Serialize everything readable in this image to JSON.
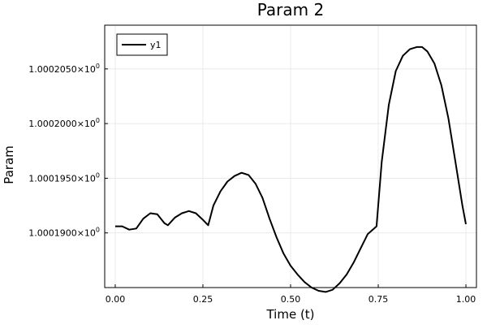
{
  "chart_data": {
    "type": "line",
    "title": "Param 2",
    "xlabel": "Time (t)",
    "ylabel": "Param",
    "xlim": [
      -0.03,
      1.03
    ],
    "ylim": [
      1.000185,
      1.000209
    ],
    "grid": true,
    "legend_position": "top-left",
    "x_ticks": [
      0.0,
      0.25,
      0.5,
      0.75,
      1.0
    ],
    "x_tick_labels": [
      "0.00",
      "0.25",
      "0.50",
      "0.75",
      "1.00"
    ],
    "y_ticks": [
      1.00019,
      1.000195,
      1.0002,
      1.000205
    ],
    "y_tick_labels": [
      {
        "mantissa": "1.0001900×10",
        "exp": "0"
      },
      {
        "mantissa": "1.0001950×10",
        "exp": "0"
      },
      {
        "mantissa": "1.0002000×10",
        "exp": "0"
      },
      {
        "mantissa": "1.0002050×10",
        "exp": "0"
      }
    ],
    "series": [
      {
        "name": "y1",
        "color": "#000000",
        "x": [
          0.0,
          0.02,
          0.04,
          0.06,
          0.08,
          0.1,
          0.12,
          0.14,
          0.15,
          0.17,
          0.19,
          0.21,
          0.23,
          0.25,
          0.265,
          0.28,
          0.3,
          0.32,
          0.34,
          0.36,
          0.37,
          0.38,
          0.4,
          0.42,
          0.44,
          0.46,
          0.48,
          0.5,
          0.52,
          0.54,
          0.56,
          0.58,
          0.6,
          0.62,
          0.64,
          0.66,
          0.68,
          0.7,
          0.72,
          0.745,
          0.76,
          0.78,
          0.8,
          0.82,
          0.84,
          0.86,
          0.875,
          0.89,
          0.91,
          0.93,
          0.95,
          0.97,
          0.99,
          1.0
        ],
        "y": [
          1.0001906,
          1.0001906,
          1.0001903,
          1.0001904,
          1.0001913,
          1.0001918,
          1.0001917,
          1.0001909,
          1.0001907,
          1.0001914,
          1.0001918,
          1.000192,
          1.0001918,
          1.0001912,
          1.0001907,
          1.0001925,
          1.0001938,
          1.0001947,
          1.0001952,
          1.0001955,
          1.0001954,
          1.0001953,
          1.0001945,
          1.0001932,
          1.0001913,
          1.0001896,
          1.0001881,
          1.000187,
          1.0001862,
          1.0001855,
          1.000185,
          1.0001847,
          1.0001846,
          1.0001848,
          1.0001854,
          1.0001862,
          1.0001873,
          1.0001886,
          1.0001899,
          1.0001906,
          1.0001965,
          1.0002017,
          1.0002048,
          1.0002062,
          1.0002068,
          1.000207,
          1.000207,
          1.0002066,
          1.0002055,
          1.0002035,
          1.0002005,
          1.0001965,
          1.0001925,
          1.0001908
        ]
      }
    ]
  }
}
